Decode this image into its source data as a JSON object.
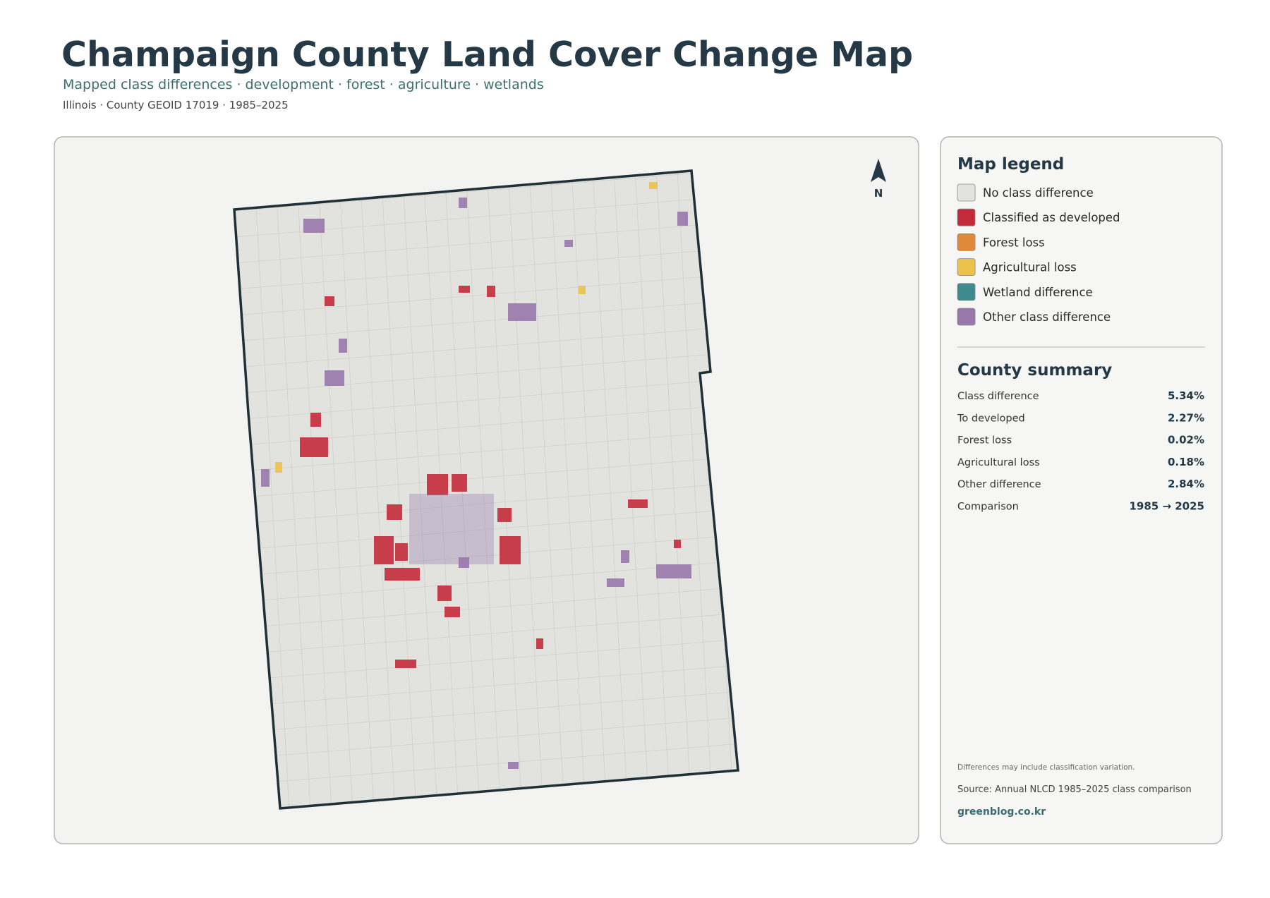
{
  "header": {
    "title": "Champaign County Land Cover Change Map",
    "subtitle": "Mapped class differences · development · forest · agriculture · wetlands",
    "meta": "Illinois · County GEOID 17019 · 1985–2025"
  },
  "map": {
    "north_label": "N"
  },
  "legend": {
    "title": "Map legend",
    "items": [
      {
        "label": "No class difference",
        "color": "#e2e2de"
      },
      {
        "label": "Classified as developed",
        "color": "#c42b3a"
      },
      {
        "label": "Forest loss",
        "color": "#de8a3a"
      },
      {
        "label": "Agricultural loss",
        "color": "#ecc24a"
      },
      {
        "label": "Wetland difference",
        "color": "#3f8a8e"
      },
      {
        "label": "Other class difference",
        "color": "#9878ab"
      }
    ]
  },
  "summary": {
    "title": "County summary",
    "rows": [
      {
        "label": "Class difference",
        "value": "5.34%"
      },
      {
        "label": "To developed",
        "value": "2.27%"
      },
      {
        "label": "Forest loss",
        "value": "0.02%"
      },
      {
        "label": "Agricultural loss",
        "value": "0.18%"
      },
      {
        "label": "Other difference",
        "value": "2.84%"
      },
      {
        "label": "Comparison",
        "value": "1985 → 2025"
      }
    ]
  },
  "footer": {
    "note": "Differences may include classification variation.",
    "source": "Source: Annual NLCD 1985–2025 class comparison",
    "credit": "greenblog.co.kr"
  }
}
